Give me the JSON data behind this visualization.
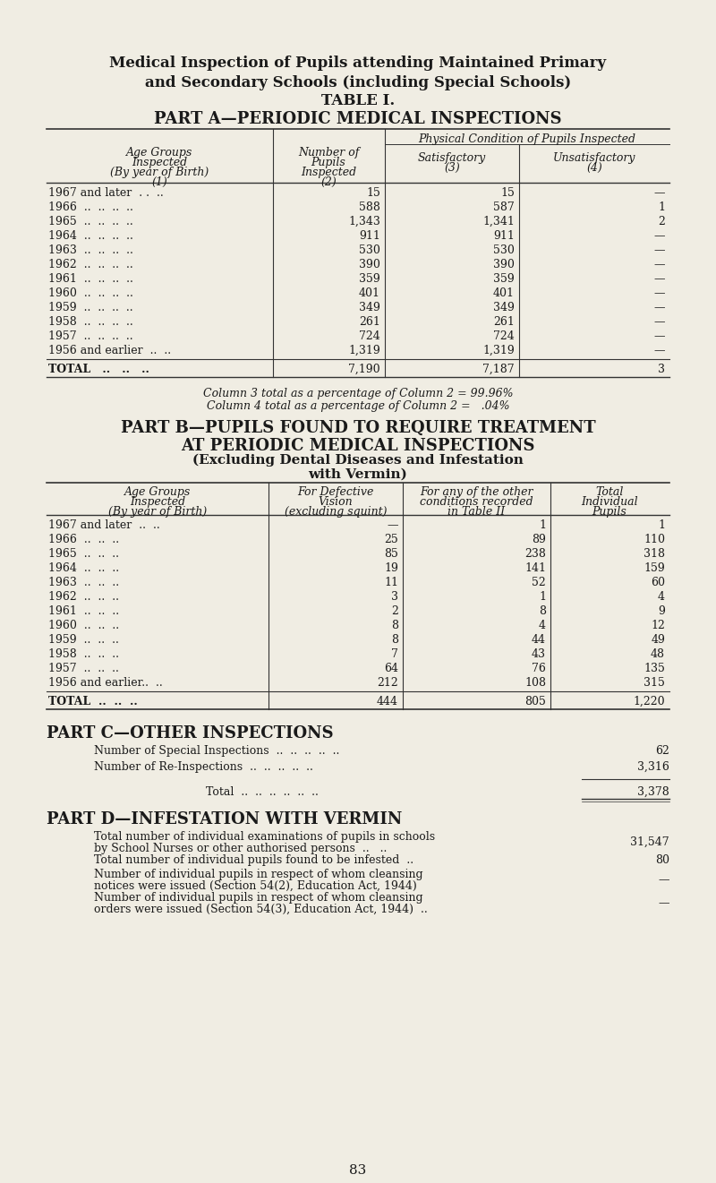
{
  "bg_color": "#f0ede3",
  "text_color": "#1a1a1a",
  "title_line1": "Medical Inspection of Pupils attending Maintained Primary",
  "title_line2": "and Secondary Schools (including Special Schools)",
  "table_title": "TABLE I.",
  "part_a_title": "PART A—PERIODIC MEDICAL INSPECTIONS",
  "part_a_rows": [
    [
      "1967 and later  . .  ..",
      "15",
      "15",
      "—"
    ],
    [
      "1966  ..  ..  ..  ..",
      "588",
      "587",
      "1"
    ],
    [
      "1965  ..  ..  ..  ..",
      "1,343",
      "1,341",
      "2"
    ],
    [
      "1964  ..  ..  ..  ..",
      "911",
      "911",
      "—"
    ],
    [
      "1963  ..  ..  ..  ..",
      "530",
      "530",
      "—"
    ],
    [
      "1962  ..  ..  ..  ..",
      "390",
      "390",
      "—"
    ],
    [
      "1961  ..  ..  ..  ..",
      "359",
      "359",
      "—"
    ],
    [
      "1960  ..  ..  ..  ..",
      "401",
      "401",
      "—"
    ],
    [
      "1959  ..  ..  ..  ..",
      "349",
      "349",
      "—"
    ],
    [
      "1958  ..  ..  ..  ..",
      "261",
      "261",
      "—"
    ],
    [
      "1957  ..  ..  ..  ..",
      "724",
      "724",
      "—"
    ],
    [
      "1956 and earlier  ..  ..",
      "1,319",
      "1,319",
      "—"
    ]
  ],
  "part_a_total": [
    "TOTAL   ..   ..   ..",
    "7,190",
    "7,187",
    "3"
  ],
  "part_a_pct1": "Column 3 total as a percentage of Column 2 = 99.96%",
  "part_a_pct2": "Column 4 total as a percentage of Column 2 =   .04%",
  "part_b_title1": "PART B—PUPILS FOUND TO REQUIRE TREATMENT",
  "part_b_title2": "AT PERIODIC MEDICAL INSPECTIONS",
  "part_b_title3": "(Excluding Dental Diseases and Infestation",
  "part_b_title4": "with Vermin)",
  "part_b_rows": [
    [
      "1967 and later  ..  ..",
      "—",
      "1",
      "1"
    ],
    [
      "1966  ..  ..  ..",
      "25",
      "89",
      "110"
    ],
    [
      "1965  ..  ..  ..",
      "85",
      "238",
      "318"
    ],
    [
      "1964  ..  ..  ..",
      "19",
      "141",
      "159"
    ],
    [
      "1963  ..  ..  ..",
      "11",
      "52",
      "60"
    ],
    [
      "1962  ..  ..  ..",
      "3",
      "1",
      "4"
    ],
    [
      "1961  ..  ..  ..",
      "2",
      "8",
      "9"
    ],
    [
      "1960  ..  ..  ..",
      "8",
      "4",
      "12"
    ],
    [
      "1959  ..  ..  ..",
      "8",
      "44",
      "49"
    ],
    [
      "1958  ..  ..  ..",
      "7",
      "43",
      "48"
    ],
    [
      "1957  ..  ..  ..",
      "64",
      "76",
      "135"
    ],
    [
      "1956 and earlier..  ..",
      "212",
      "108",
      "315"
    ]
  ],
  "part_b_total": [
    "TOTAL  ..  ..  ..",
    "444",
    "805",
    "1,220"
  ],
  "part_c_title": "PART C—OTHER INSPECTIONS",
  "part_c_rows": [
    [
      "Number of Special Inspections  ..  ..  ..  ..  ..",
      "62"
    ],
    [
      "Number of Re-Inspections  ..  ..  ..  ..  ..",
      "3,316"
    ]
  ],
  "part_c_total_label": "Total  ..  ..  ..  ..  ..  ..",
  "part_c_total_value": "3,378",
  "part_d_title": "PART D—INFESTATION WITH VERMIN",
  "part_d_rows": [
    [
      "Total number of individual examinations of pupils in schools\n        by School Nurses or other authorised persons  ..   ..",
      "31,547"
    ],
    [
      "Total number of individual pupils found to be infested  ..",
      "80"
    ],
    [
      "Number of individual pupils in respect of whom cleansing\n        notices were issued (Section 54(2), Education Act, 1944)",
      "—"
    ],
    [
      "Number of individual pupils in respect of whom cleansing\n        orders were issued (Section 54(3), Education Act, 1944)  ..",
      "—"
    ]
  ],
  "page_number": "83"
}
